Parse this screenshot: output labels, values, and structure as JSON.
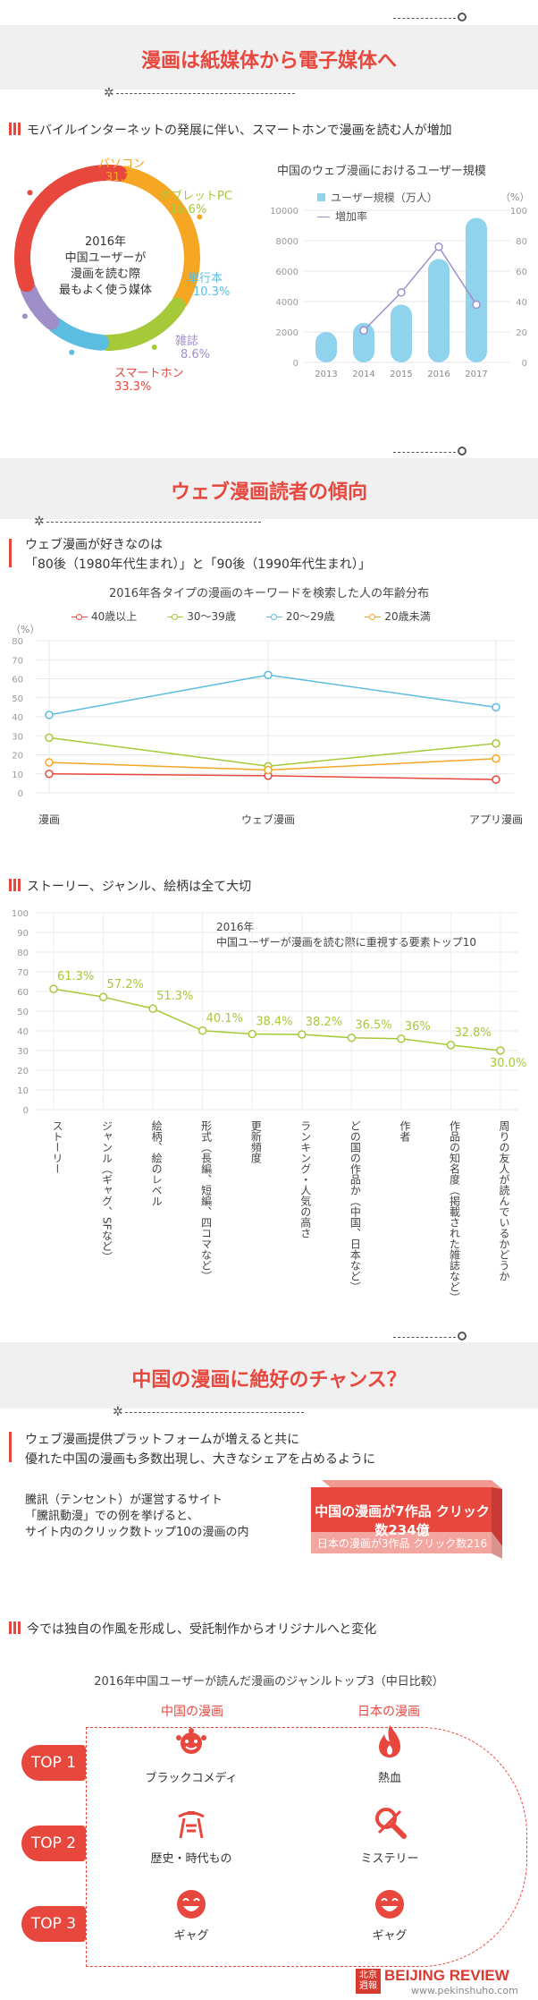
{
  "section1": {
    "title": "漫画は紙媒体から電子媒体へ",
    "heading": "モバイルインターネットの発展に伴い、スマートホンで漫画を読む人が増加",
    "donut": {
      "center_lines": [
        "2016年",
        "中国ユーザーが",
        "漫画を読む際",
        "最もよく使う媒体"
      ],
      "segments": [
        {
          "name": "パソコン",
          "value": "31.2%",
          "pct": 31.2,
          "color": "#f5a623"
        },
        {
          "name": "タブレットPC",
          "value": "16.6%",
          "pct": 16.6,
          "color": "#a6c93a"
        },
        {
          "name": "単行本",
          "value": "10.3%",
          "pct": 10.3,
          "color": "#5bbde0"
        },
        {
          "name": "雑誌",
          "value": "8.6%",
          "pct": 8.6,
          "color": "#9f8fc9"
        },
        {
          "name": "スマートホン",
          "value": "33.3%",
          "pct": 33.3,
          "color": "#e8473e"
        }
      ]
    },
    "bar_chart_title": "中国のウェブ漫画におけるユーザー規模",
    "unit_label": "（%）",
    "legend_bar": "ユーザー規模（万人）",
    "legend_line": "増加率"
  },
  "section2": {
    "title": "ウェブ漫画読者の傾向",
    "heading_line1": "ウェブ漫画が好きなのは",
    "heading_line2": "「80後（1980年代生まれ）」と「90後（1990年代生まれ）」",
    "chart_title": "2016年各タイプの漫画のキーワードを検索した人の年齢分布",
    "unit_label": "（%）"
  },
  "section3": {
    "heading": "ストーリー、ジャンル、絵柄は全て大切",
    "chart_title_line1": "2016年",
    "chart_title_line2": "中国ユーザーが漫画を読む際に重視する要素トップ10"
  },
  "section4": {
    "title": "中国の漫画に絶好のチャンス？",
    "heading_line1": "ウェブ漫画提供プラットフォームが増えると共に",
    "heading_line2": "優れた中国の漫画も多数出現し、大きなシェアを占めるように",
    "example_lines": [
      "騰訊（テンセント）が運営するサイト",
      "「騰訊動漫」での例を挙げると、",
      "サイト内のクリック数トップ10の漫画の内"
    ],
    "box_top": "中国の漫画が7作品 クリック数234億",
    "box_bottom": "日本の漫画が3作品 クリック数216億"
  },
  "section5": {
    "heading": "今では独自の作風を形成し、受託制作からオリジナルへと変化",
    "chart_title": "2016年中国ユーザーが読んだ漫画のジャンルトップ3（中日比較）",
    "col_china": "中国の漫画",
    "col_japan": "日本の漫画",
    "rows": [
      {
        "badge": "TOP 1",
        "china": "ブラックコメディ",
        "japan": "熱血",
        "china_icon": "clown-icon",
        "japan_icon": "flame-icon"
      },
      {
        "badge": "TOP 2",
        "china": "歴史・時代もの",
        "japan": "ミステリー",
        "china_icon": "palace-icon",
        "japan_icon": "magnifier-icon"
      },
      {
        "badge": "TOP 3",
        "china": "ギャグ",
        "japan": "ギャグ",
        "china_icon": "laugh-icon",
        "japan_icon": "laugh-icon"
      }
    ]
  },
  "footer": {
    "logo_cn": "北京週報",
    "brand": "BEIJING REVIEW",
    "url": "www.pekinshuho.com"
  },
  "chart_data": [
    {
      "type": "bar",
      "title": "中国のウェブ漫画におけるユーザー規模",
      "categories": [
        "2013",
        "2014",
        "2015",
        "2016",
        "2017"
      ],
      "series": [
        {
          "name": "ユーザー規模（万人）",
          "values": [
            2000,
            2600,
            3800,
            6800,
            9500
          ]
        },
        {
          "name": "増加率",
          "values": [
            null,
            21,
            46,
            76,
            38
          ]
        }
      ],
      "ylim": [
        0,
        10000
      ],
      "y_ticks": [
        "0",
        "2000",
        "4000",
        "6000",
        "8000",
        "10000"
      ],
      "y2lim": [
        0,
        100
      ],
      "y2_ticks": [
        "0",
        "20",
        "40",
        "60",
        "80",
        "100"
      ]
    },
    {
      "type": "line",
      "title": "2016年各タイプの漫画のキーワードを検索した人の年齢分布",
      "categories": [
        "漫画",
        "ウェブ漫画",
        "アプリ漫画"
      ],
      "series": [
        {
          "name": "40歳以上",
          "values": [
            10,
            9,
            7
          ],
          "color": "#e8473e"
        },
        {
          "name": "30～39歳",
          "values": [
            29,
            14,
            26
          ],
          "color": "#a6c93a"
        },
        {
          "name": "20～29歳",
          "values": [
            41,
            62,
            45
          ],
          "color": "#5bbde0"
        },
        {
          "name": "20歳未満",
          "values": [
            16,
            12,
            18
          ],
          "color": "#f5a623"
        }
      ],
      "ylim": [
        0,
        80
      ],
      "y_ticks": [
        "0",
        "10",
        "20",
        "30",
        "40",
        "50",
        "60",
        "70",
        "80"
      ]
    },
    {
      "type": "line",
      "title": "中国ユーザーが漫画を読む際に重視する要素トップ10",
      "categories": [
        "ストーリー",
        "ジャンル（ギャグ、SFなど）",
        "絵柄、絵のレベル",
        "形式（長編、短編、四コマなど）",
        "更新頻度",
        "ランキング・人気の高さ",
        "どの国の作品か（中国、日本など）",
        "作者",
        "作品の知名度（掲載された雑誌など）",
        "周りの友人が読んでいるかどうか"
      ],
      "values": [
        61.3,
        57.2,
        51.3,
        40.1,
        38.4,
        38.2,
        36.5,
        36,
        32.8,
        30.0
      ],
      "labels": [
        "61.3%",
        "57.2%",
        "51.3%",
        "40.1%",
        "38.4%",
        "38.2%",
        "36.5%",
        "36%",
        "32.8%",
        "30.0%"
      ],
      "ylim": [
        0,
        100
      ],
      "y_ticks": [
        "0",
        "10",
        "20",
        "30",
        "40",
        "50",
        "60",
        "70",
        "80",
        "90",
        "100"
      ]
    }
  ]
}
